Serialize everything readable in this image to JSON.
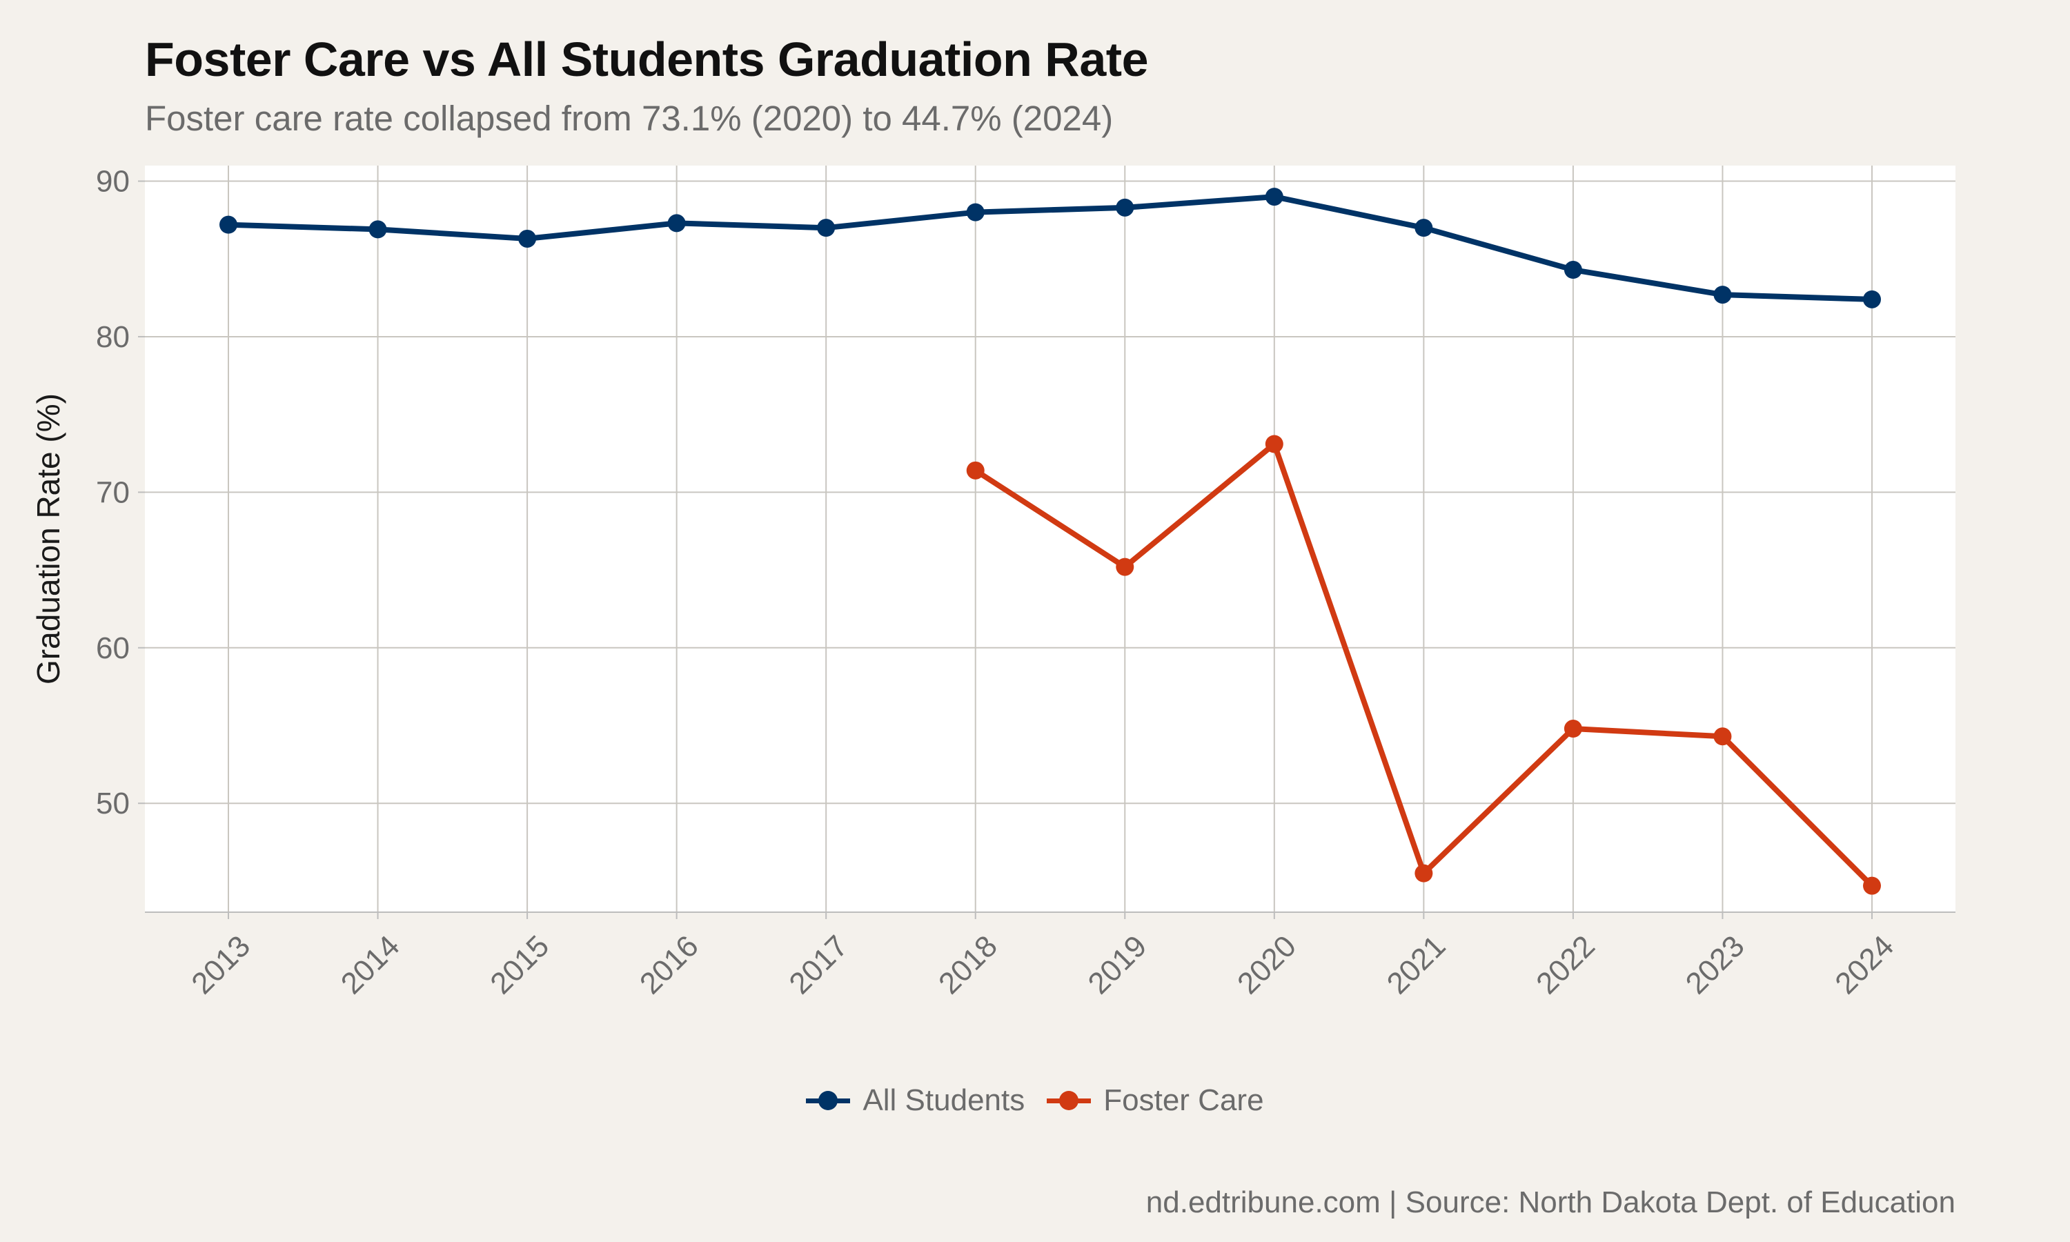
{
  "title": "Foster Care vs All Students Graduation Rate",
  "subtitle": "Foster care rate collapsed from 73.1% (2020) to 44.7% (2024)",
  "caption": "nd.edtribune.com | Source: North Dakota Dept. of Education",
  "chart_data": {
    "type": "line",
    "title": "Foster Care vs All Students Graduation Rate",
    "subtitle": "Foster care rate collapsed from 73.1% (2020) to 44.7% (2024)",
    "xlabel": "",
    "ylabel": "Graduation Rate (%)",
    "x": [
      "2013",
      "2014",
      "2015",
      "2016",
      "2017",
      "2018",
      "2019",
      "2020",
      "2021",
      "2022",
      "2023",
      "2024"
    ],
    "ylim": [
      43.0,
      91.0
    ],
    "yticks": [
      50,
      60,
      70,
      80,
      90
    ],
    "grid": true,
    "legend_position": "bottom",
    "series": [
      {
        "name": "All Students",
        "color": "#003366",
        "values": [
          87.2,
          86.9,
          86.3,
          87.3,
          87.0,
          88.0,
          88.3,
          89.0,
          87.0,
          84.3,
          82.7,
          82.4
        ]
      },
      {
        "name": "Foster Care",
        "color": "#D13A12",
        "values": [
          null,
          null,
          null,
          null,
          null,
          71.4,
          65.2,
          73.1,
          45.5,
          54.8,
          54.3,
          44.7
        ]
      }
    ]
  }
}
